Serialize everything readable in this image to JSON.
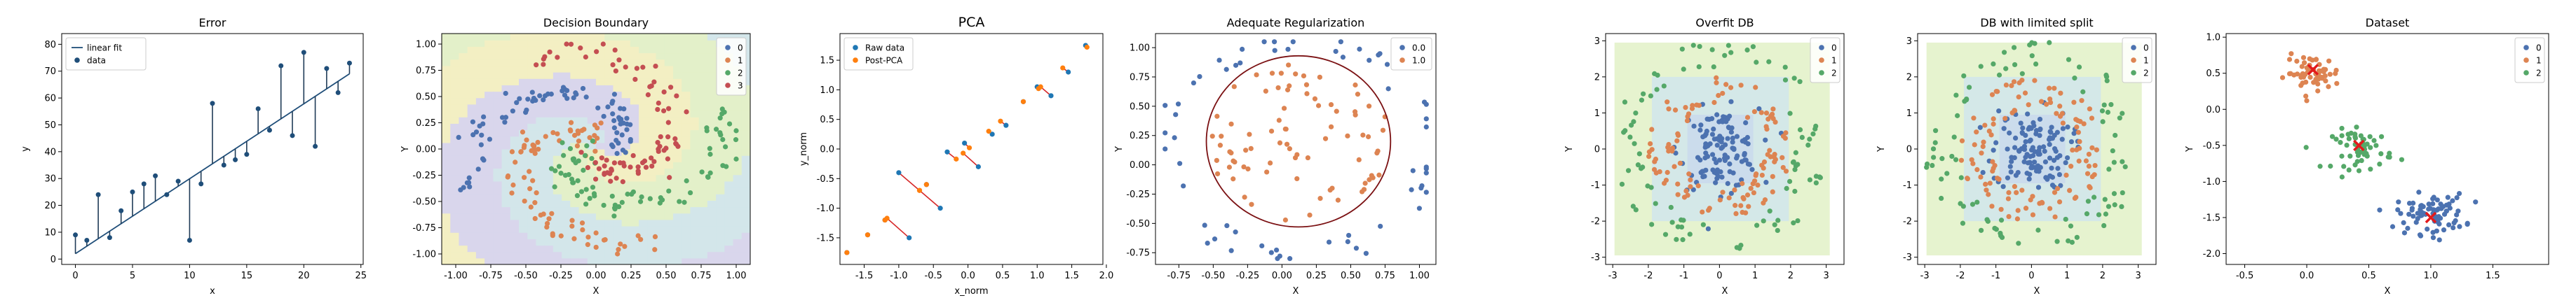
{
  "chart_data": [
    {
      "type": "scatter",
      "title": "Error",
      "xlabel": "x",
      "ylabel": "y",
      "xlim": [
        -1.2,
        25.2
      ],
      "ylim": [
        -2,
        84
      ],
      "xticks": [
        0,
        5,
        10,
        15,
        20,
        25
      ],
      "yticks": [
        0,
        10,
        20,
        30,
        40,
        50,
        60,
        70,
        80
      ],
      "legend": {
        "position": "top-left",
        "entries": [
          "linear fit",
          "data"
        ]
      },
      "line": {
        "name": "linear fit",
        "x": [
          0,
          24
        ],
        "y": [
          2,
          69
        ],
        "color": "#1f4e79"
      },
      "points": {
        "name": "data",
        "color": "#1f4e79",
        "x": [
          0,
          1,
          2,
          3,
          4,
          5,
          6,
          7,
          8,
          9,
          10,
          11,
          12,
          13,
          14,
          15,
          16,
          17,
          18,
          19,
          20,
          21,
          22,
          23,
          24
        ],
        "y": [
          9,
          7,
          24,
          8,
          18,
          25,
          28,
          31,
          24,
          29,
          7,
          28,
          58,
          35,
          37,
          39,
          56,
          48,
          72,
          46,
          77,
          42,
          71,
          62,
          73
        ]
      },
      "errorbars": true
    },
    {
      "type": "scatter",
      "title": "Decision Boundary",
      "xlabel": "X",
      "ylabel": "Y",
      "xlim": [
        -1.1,
        1.1
      ],
      "ylim": [
        -1.1,
        1.1
      ],
      "xticks": [
        -1.0,
        -0.75,
        -0.5,
        -0.25,
        0.0,
        0.25,
        0.5,
        0.75,
        1.0
      ],
      "yticks": [
        -1.0,
        -0.75,
        -0.5,
        -0.25,
        0.0,
        0.25,
        0.5,
        0.75,
        1.0
      ],
      "legend": {
        "position": "top-right",
        "entries": [
          "0",
          "1",
          "2",
          "3"
        ]
      },
      "background_regions": true,
      "series": [
        {
          "name": "0",
          "color": "#4c72b0",
          "generator": "spiral",
          "arm": 0,
          "count": 80
        },
        {
          "name": "1",
          "color": "#dd8452",
          "generator": "spiral",
          "arm": 1,
          "count": 80
        },
        {
          "name": "2",
          "color": "#55a868",
          "generator": "spiral",
          "arm": 2,
          "count": 80
        },
        {
          "name": "3",
          "color": "#c44e52",
          "generator": "spiral",
          "arm": 3,
          "count": 80
        }
      ]
    },
    {
      "type": "scatter",
      "title": "PCA",
      "xlabel": "x_norm",
      "ylabel": "y_norm",
      "xlim": [
        -1.85,
        1.95
      ],
      "ylim": [
        -1.95,
        1.95
      ],
      "xticks": [
        -1.5,
        -1.0,
        -0.5,
        0.0,
        0.5,
        1.0,
        1.5,
        2.0
      ],
      "yticks": [
        -1.5,
        -1.0,
        -0.5,
        0.0,
        0.5,
        1.0,
        1.5
      ],
      "legend": {
        "position": "top-left",
        "entries": [
          "Raw data",
          "Post-PCA"
        ]
      },
      "series": [
        {
          "name": "Raw data",
          "color": "#1f77b4",
          "x": [
            -1.75,
            -1.45,
            -1.2,
            -1.0,
            -0.85,
            -0.6,
            -0.4,
            -0.3,
            -0.05,
            0.15,
            0.35,
            0.55,
            0.8,
            1.0,
            1.2,
            1.45,
            1.7
          ],
          "y": [
            -1.75,
            -1.45,
            -1.2,
            -0.4,
            -1.5,
            -0.6,
            -1.0,
            -0.05,
            0.1,
            -0.3,
            0.25,
            0.4,
            0.8,
            1.05,
            0.9,
            1.3,
            1.75
          ]
        },
        {
          "name": "Post-PCA",
          "color": "#ff7f0e",
          "x": [
            -1.75,
            -1.45,
            -1.2,
            -0.7,
            -1.17,
            -0.6,
            -0.7,
            -0.17,
            0.02,
            -0.07,
            0.3,
            0.47,
            0.8,
            1.02,
            1.05,
            1.37,
            1.72
          ],
          "y": [
            -1.75,
            -1.45,
            -1.2,
            -0.7,
            -1.17,
            -0.6,
            -0.7,
            -0.17,
            0.02,
            -0.07,
            0.3,
            0.47,
            0.8,
            1.02,
            1.05,
            1.37,
            1.72
          ]
        }
      ],
      "connectors": {
        "color": "#d62728"
      }
    },
    {
      "type": "scatter",
      "title": "Adequate Regularization",
      "xlabel": "X",
      "ylabel": "Y",
      "xlim": [
        -0.92,
        1.12
      ],
      "ylim": [
        -0.85,
        1.12
      ],
      "xticks": [
        -0.75,
        -0.5,
        -0.25,
        0.0,
        0.25,
        0.5,
        0.75,
        1.0
      ],
      "yticks": [
        -0.75,
        -0.5,
        -0.25,
        0.0,
        0.25,
        0.5,
        0.75,
        1.0
      ],
      "legend": {
        "position": "top-right",
        "entries": [
          "0.0",
          "1.0"
        ]
      },
      "boundary": {
        "color": "#7b1113",
        "cx": 0.12,
        "cy": 0.2,
        "rx": 0.67,
        "ry": 0.73
      },
      "series": [
        {
          "name": "0.0",
          "color": "#4c72b0",
          "generator": "ring",
          "count": 60
        },
        {
          "name": "1.0",
          "color": "#dd8452",
          "generator": "disk",
          "count": 80
        }
      ]
    },
    {
      "type": "scatter",
      "title": "Overfit DB",
      "xlabel": "X",
      "ylabel": "Y",
      "xlim": [
        -3.2,
        3.5
      ],
      "ylim": [
        -3.2,
        3.2
      ],
      "xticks": [
        -3,
        -2,
        -1,
        0,
        1,
        2,
        3
      ],
      "yticks": [
        -3,
        -2,
        -1,
        0,
        1,
        2,
        3
      ],
      "legend": {
        "position": "top-right",
        "entries": [
          "0",
          "1",
          "2"
        ]
      },
      "background_regions": true,
      "series": [
        {
          "name": "0",
          "color": "#4c72b0",
          "generator": "gauss",
          "count": 120
        },
        {
          "name": "1",
          "color": "#dd8452",
          "generator": "annulus",
          "count": 110
        },
        {
          "name": "2",
          "color": "#55a868",
          "generator": "outer",
          "count": 90
        }
      ]
    },
    {
      "type": "scatter",
      "title": "DB with limited split",
      "xlabel": "X",
      "ylabel": "Y",
      "xlim": [
        -3.2,
        3.5
      ],
      "ylim": [
        -3.2,
        3.2
      ],
      "xticks": [
        -3,
        -2,
        -1,
        0,
        1,
        2,
        3
      ],
      "yticks": [
        -3,
        -2,
        -1,
        0,
        1,
        2,
        3
      ],
      "legend": {
        "position": "top-right",
        "entries": [
          "0",
          "1",
          "2"
        ]
      },
      "background_regions": true,
      "series": [
        {
          "name": "0",
          "color": "#4c72b0",
          "generator": "gauss",
          "count": 120
        },
        {
          "name": "1",
          "color": "#dd8452",
          "generator": "annulus",
          "count": 110
        },
        {
          "name": "2",
          "color": "#55a868",
          "generator": "outer",
          "count": 90
        }
      ]
    },
    {
      "type": "scatter",
      "title": "Dataset",
      "xlabel": "X",
      "ylabel": "Y",
      "xlim": [
        -0.65,
        1.95
      ],
      "ylim": [
        -2.15,
        1.05
      ],
      "xticks": [
        -0.5,
        0.0,
        0.5,
        1.0,
        1.5
      ],
      "yticks": [
        -2.0,
        -1.5,
        -1.0,
        -0.5,
        0.0,
        0.5,
        1.0
      ],
      "legend": {
        "position": "top-right",
        "entries": [
          "0",
          "1",
          "2"
        ]
      },
      "series": [
        {
          "name": "0",
          "color": "#4c72b0",
          "generator": "cluster",
          "center": [
            1.0,
            -1.45
          ],
          "spread": [
            0.25,
            0.25
          ],
          "count": 80
        },
        {
          "name": "1",
          "color": "#dd8452",
          "generator": "cluster",
          "center": [
            0.05,
            0.5
          ],
          "spread": [
            0.2,
            0.22
          ],
          "count": 60
        },
        {
          "name": "2",
          "color": "#55a868",
          "generator": "cluster",
          "center": [
            0.45,
            -0.55
          ],
          "spread": [
            0.22,
            0.25
          ],
          "count": 55
        }
      ],
      "centroids": {
        "color": "#e31a1c",
        "x": [
          1.0,
          0.05,
          0.42
        ],
        "y": [
          -1.5,
          0.55,
          -0.5
        ]
      }
    }
  ]
}
